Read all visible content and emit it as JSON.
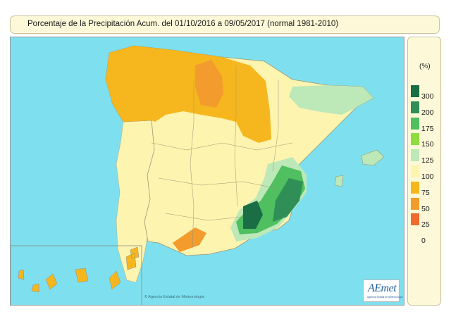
{
  "title": "Porcentaje de la Precipitación Acum. del 01/10/2016 a  09/05/2017  (normal 1981-2010)",
  "legend": {
    "unit": "(%)",
    "labels": [
      "300",
      "200",
      "175",
      "150",
      "125",
      "100",
      "75",
      "50",
      "25",
      "0"
    ],
    "colors": [
      "#1a6e45",
      "#2f8f56",
      "#4fbf5f",
      "#8fdc3f",
      "#bde8b8",
      "#fdf4b0",
      "#f6b71e",
      "#f39b2c",
      "#ef6a2e",
      "#ffffff"
    ]
  },
  "map_colors": {
    "sea": "#7ee0ee",
    "below_normal": "#f6b71e",
    "very_dry": "#f39b2c",
    "normal": "#fdf4b0",
    "above_normal": "#bde8b8",
    "wet": "#4fbf5f",
    "very_wet": "#2f8f56",
    "extreme": "#1a6e45"
  },
  "credit": "© Agencia Estatal de Meteorología",
  "logo": {
    "name": "AEmet",
    "subtitle": "Agencia Estatal de Meteorología"
  }
}
